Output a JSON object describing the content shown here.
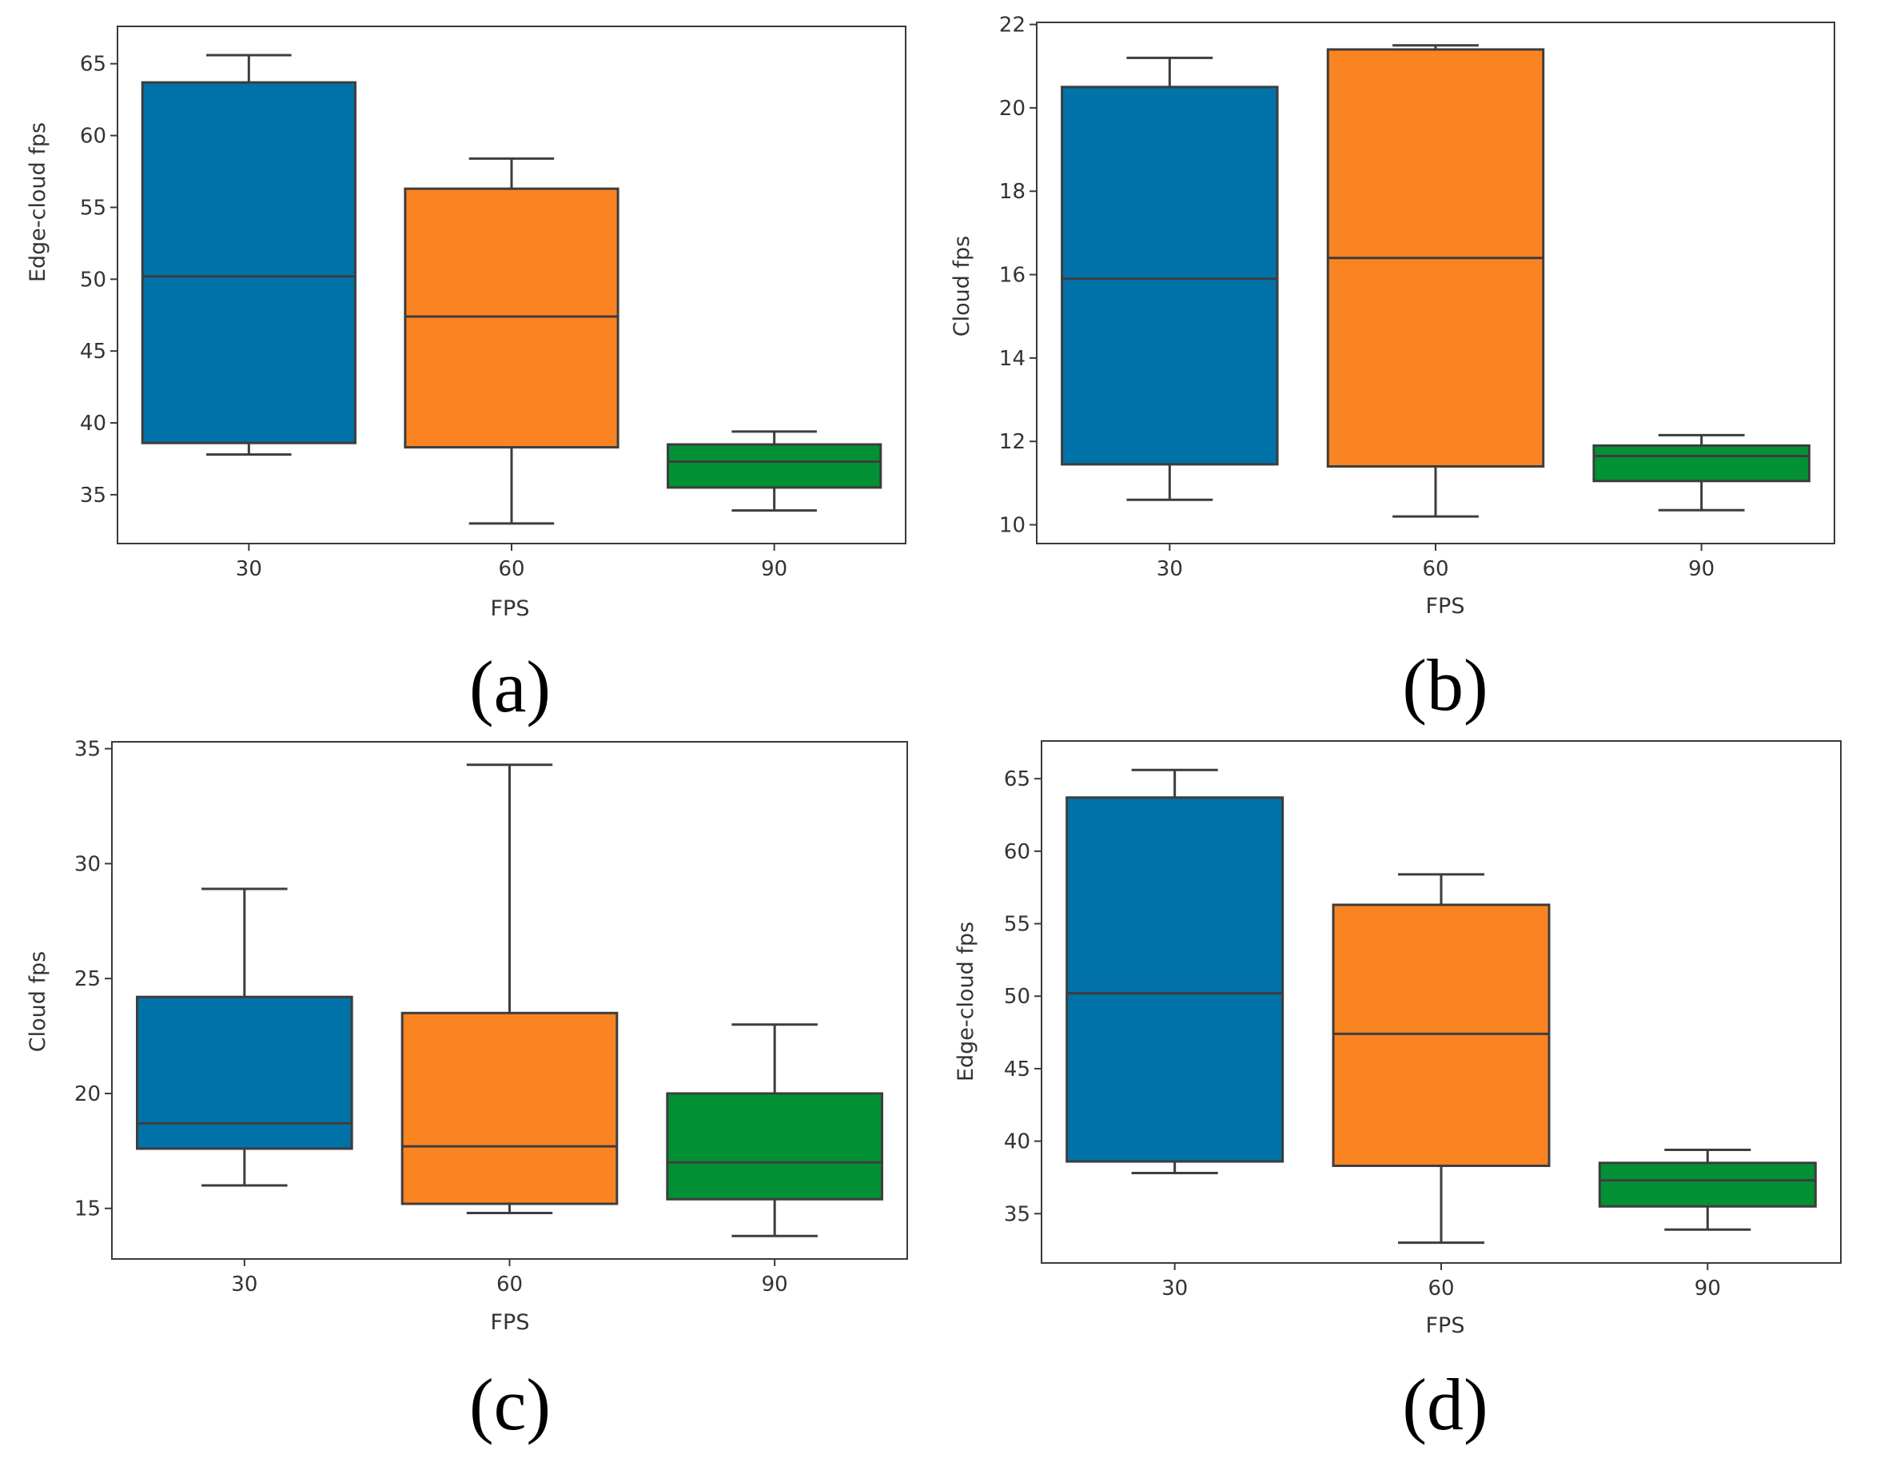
{
  "chart_data": [
    {
      "id": "a",
      "type": "box",
      "caption": "(a)",
      "xlabel": "FPS",
      "ylabel": "Edge-cloud fps",
      "ylim": [
        31.6,
        67.6
      ],
      "yticks": [
        35,
        40,
        45,
        50,
        55,
        60,
        65
      ],
      "categories": [
        "30",
        "60",
        "90"
      ],
      "colors": [
        "#0072a7",
        "#fb8422",
        "#029134"
      ],
      "boxes": [
        {
          "category": "30",
          "whisker_low": 37.8,
          "q1": 38.6,
          "median": 50.2,
          "q3": 63.7,
          "whisker_high": 65.6
        },
        {
          "category": "60",
          "whisker_low": 33.0,
          "q1": 38.3,
          "median": 47.4,
          "q3": 56.3,
          "whisker_high": 58.4
        },
        {
          "category": "90",
          "whisker_low": 33.9,
          "q1": 35.5,
          "median": 37.3,
          "q3": 38.5,
          "whisker_high": 39.4
        }
      ]
    },
    {
      "id": "b",
      "type": "box",
      "caption": "(b)",
      "xlabel": "FPS",
      "ylabel": "Cloud fps",
      "ylim": [
        9.55,
        22.05
      ],
      "yticks": [
        10,
        12,
        14,
        16,
        18,
        20,
        22
      ],
      "categories": [
        "30",
        "60",
        "90"
      ],
      "colors": [
        "#0072a7",
        "#fb8422",
        "#029134"
      ],
      "boxes": [
        {
          "category": "30",
          "whisker_low": 10.6,
          "q1": 11.45,
          "median": 15.9,
          "q3": 20.5,
          "whisker_high": 21.2
        },
        {
          "category": "60",
          "whisker_low": 10.2,
          "q1": 11.4,
          "median": 16.4,
          "q3": 21.4,
          "whisker_high": 21.5
        },
        {
          "category": "90",
          "whisker_low": 10.35,
          "q1": 11.05,
          "median": 11.65,
          "q3": 11.9,
          "whisker_high": 12.15
        }
      ]
    },
    {
      "id": "c",
      "type": "box",
      "caption": "(c)",
      "xlabel": "FPS",
      "ylabel": "Cloud fps",
      "ylim": [
        12.8,
        35.3
      ],
      "yticks": [
        15,
        20,
        25,
        30,
        35
      ],
      "categories": [
        "30",
        "60",
        "90"
      ],
      "colors": [
        "#0072a7",
        "#fb8422",
        "#029134"
      ],
      "boxes": [
        {
          "category": "30",
          "whisker_low": 16.0,
          "q1": 17.6,
          "median": 18.7,
          "q3": 24.2,
          "whisker_high": 28.9
        },
        {
          "category": "60",
          "whisker_low": 14.8,
          "q1": 15.2,
          "median": 17.7,
          "q3": 23.5,
          "whisker_high": 34.3
        },
        {
          "category": "90",
          "whisker_low": 13.8,
          "q1": 15.4,
          "median": 17.0,
          "q3": 20.0,
          "whisker_high": 23.0
        }
      ]
    },
    {
      "id": "d",
      "type": "box",
      "caption": "(d)",
      "xlabel": "FPS",
      "ylabel": "Edge-cloud fps",
      "ylim": [
        31.6,
        67.6
      ],
      "yticks": [
        35,
        40,
        45,
        50,
        55,
        60,
        65
      ],
      "categories": [
        "30",
        "60",
        "90"
      ],
      "colors": [
        "#0072a7",
        "#fb8422",
        "#029134"
      ],
      "boxes": [
        {
          "category": "30",
          "whisker_low": 37.8,
          "q1": 38.6,
          "median": 50.2,
          "q3": 63.7,
          "whisker_high": 65.6
        },
        {
          "category": "60",
          "whisker_low": 33.0,
          "q1": 38.3,
          "median": 47.4,
          "q3": 56.3,
          "whisker_high": 58.4
        },
        {
          "category": "90",
          "whisker_low": 33.9,
          "q1": 35.5,
          "median": 37.3,
          "q3": 38.5,
          "whisker_high": 39.4
        }
      ]
    }
  ]
}
